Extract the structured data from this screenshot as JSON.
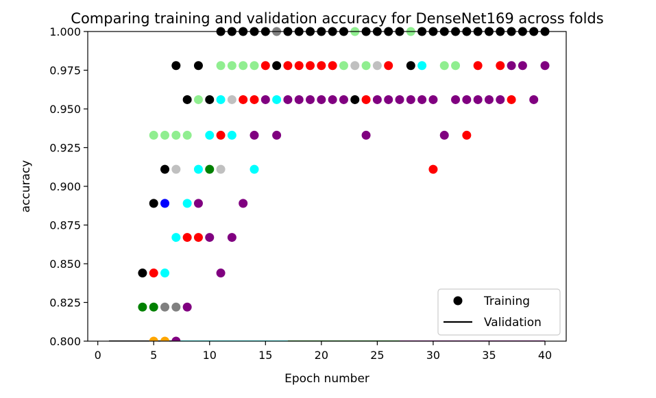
{
  "chart_data": {
    "type": "scatter",
    "title": "Comparing training and validation accuracy for DenseNet169 across folds",
    "xlabel": "Epoch number",
    "ylabel": "accuracy",
    "xlim": [
      -0.9,
      41.9
    ],
    "ylim": [
      0.8,
      1.0
    ],
    "xticks": [
      0,
      5,
      10,
      15,
      20,
      25,
      30,
      35,
      40
    ],
    "yticks": [
      0.8,
      0.825,
      0.85,
      0.875,
      0.9,
      0.925,
      0.95,
      0.975,
      1.0
    ],
    "ytick_labels": [
      "0.800",
      "0.825",
      "0.850",
      "0.875",
      "0.900",
      "0.925",
      "0.950",
      "0.975",
      "1.000"
    ],
    "grid": false,
    "legend": {
      "placement": "lower-right",
      "entries": [
        {
          "label": "Training",
          "marker": "circle",
          "color": "#000000"
        },
        {
          "label": "Validation",
          "marker": "line",
          "color": "#000000"
        }
      ]
    },
    "series": [
      {
        "color": "#000000",
        "points": [
          [
            4,
            0.844
          ],
          [
            5,
            0.889
          ],
          [
            6,
            0.911
          ],
          [
            7,
            0.978
          ],
          [
            8,
            0.956
          ],
          [
            9,
            0.978
          ],
          [
            10,
            0.956
          ],
          [
            11,
            1
          ],
          [
            12,
            1
          ],
          [
            13,
            1
          ],
          [
            14,
            1
          ],
          [
            15,
            1
          ],
          [
            16,
            0.978
          ],
          [
            17,
            1
          ],
          [
            18,
            1
          ],
          [
            19,
            1
          ],
          [
            20,
            1
          ],
          [
            21,
            1
          ],
          [
            22,
            1
          ],
          [
            23,
            0.956
          ],
          [
            24,
            1
          ],
          [
            25,
            1
          ],
          [
            26,
            1
          ],
          [
            27,
            1
          ],
          [
            28,
            0.978
          ],
          [
            29,
            1
          ],
          [
            30,
            1
          ],
          [
            31,
            1
          ],
          [
            32,
            1
          ],
          [
            33,
            1
          ],
          [
            34,
            1
          ],
          [
            35,
            1
          ],
          [
            36,
            1
          ],
          [
            37,
            1
          ],
          [
            38,
            1
          ],
          [
            39,
            1
          ],
          [
            40,
            1
          ]
        ]
      },
      {
        "color": "#808080",
        "points": [
          [
            6,
            0.822
          ],
          [
            7,
            0.822
          ],
          [
            16,
            1
          ]
        ]
      },
      {
        "color": "#c0c0c0",
        "points": [
          [
            7,
            0.911
          ],
          [
            11,
            0.911
          ],
          [
            12,
            0.956
          ],
          [
            23,
            0.978
          ],
          [
            25,
            0.978
          ]
        ]
      },
      {
        "color": "#90ee90",
        "points": [
          [
            5,
            0.933
          ],
          [
            6,
            0.933
          ],
          [
            7,
            0.933
          ],
          [
            8,
            0.933
          ],
          [
            9,
            0.956
          ],
          [
            11,
            0.978
          ],
          [
            12,
            0.978
          ],
          [
            13,
            0.978
          ],
          [
            14,
            0.978
          ],
          [
            22,
            0.978
          ],
          [
            23,
            1
          ],
          [
            24,
            0.978
          ],
          [
            28,
            1
          ],
          [
            31,
            0.978
          ],
          [
            32,
            0.978
          ]
        ]
      },
      {
        "color": "#008000",
        "points": [
          [
            4,
            0.822
          ],
          [
            5,
            0.822
          ],
          [
            10,
            0.911
          ]
        ]
      },
      {
        "color": "#0000ff",
        "points": [
          [
            6,
            0.889
          ]
        ]
      },
      {
        "color": "#00ffff",
        "points": [
          [
            6,
            0.844
          ],
          [
            7,
            0.867
          ],
          [
            8,
            0.889
          ],
          [
            9,
            0.911
          ],
          [
            10,
            0.933
          ],
          [
            11,
            0.956
          ],
          [
            12,
            0.933
          ],
          [
            14,
            0.911
          ],
          [
            16,
            0.956
          ],
          [
            29,
            0.978
          ]
        ]
      },
      {
        "color": "#ff0000",
        "points": [
          [
            5,
            0.844
          ],
          [
            8,
            0.867
          ],
          [
            9,
            0.867
          ],
          [
            11,
            0.933
          ],
          [
            13,
            0.956
          ],
          [
            14,
            0.956
          ],
          [
            15,
            0.978
          ],
          [
            17,
            0.978
          ],
          [
            18,
            0.978
          ],
          [
            19,
            0.978
          ],
          [
            20,
            0.978
          ],
          [
            21,
            0.978
          ],
          [
            24,
            0.956
          ],
          [
            26,
            0.978
          ],
          [
            30,
            0.911
          ],
          [
            33,
            0.933
          ],
          [
            34,
            0.978
          ],
          [
            36,
            0.978
          ],
          [
            37,
            0.956
          ]
        ]
      },
      {
        "color": "#800080",
        "points": [
          [
            7,
            0.8
          ],
          [
            8,
            0.822
          ],
          [
            9,
            0.889
          ],
          [
            10,
            0.867
          ],
          [
            11,
            0.844
          ],
          [
            12,
            0.867
          ],
          [
            13,
            0.889
          ],
          [
            14,
            0.933
          ],
          [
            15,
            0.956
          ],
          [
            16,
            0.933
          ],
          [
            17,
            0.956
          ],
          [
            18,
            0.956
          ],
          [
            19,
            0.956
          ],
          [
            20,
            0.956
          ],
          [
            21,
            0.956
          ],
          [
            22,
            0.956
          ],
          [
            24,
            0.933
          ],
          [
            25,
            0.956
          ],
          [
            26,
            0.956
          ],
          [
            27,
            0.956
          ],
          [
            28,
            0.956
          ],
          [
            29,
            0.956
          ],
          [
            30,
            0.956
          ],
          [
            31,
            0.933
          ],
          [
            32,
            0.956
          ],
          [
            33,
            0.956
          ],
          [
            34,
            0.956
          ],
          [
            35,
            0.956
          ],
          [
            36,
            0.956
          ],
          [
            37,
            0.978
          ],
          [
            38,
            0.978
          ],
          [
            39,
            0.956
          ],
          [
            40,
            0.978
          ]
        ]
      },
      {
        "color": "#ffa500",
        "points": [
          [
            5,
            0.8
          ],
          [
            6,
            0.8
          ]
        ]
      }
    ],
    "validation_lines": [
      {
        "color": "#ff0000",
        "x": [
          1,
          10
        ],
        "y": [
          0.8,
          0.8
        ]
      },
      {
        "color": "#000000",
        "x": [
          1,
          8
        ],
        "y": [
          0.8,
          0.8
        ]
      },
      {
        "color": "#00ffff",
        "x": [
          7,
          17
        ],
        "y": [
          0.8,
          0.8
        ]
      },
      {
        "color": "#008000",
        "x": [
          17,
          40
        ],
        "y": [
          0.8,
          0.8
        ]
      },
      {
        "color": "#800080",
        "x": [
          27,
          40
        ],
        "y": [
          0.8,
          0.8
        ]
      }
    ]
  }
}
